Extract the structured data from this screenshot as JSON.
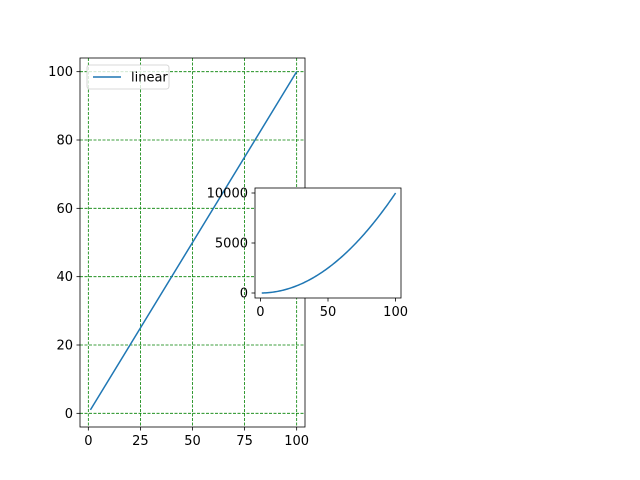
{
  "chart_data": [
    {
      "type": "line",
      "title": "",
      "xlabel": "",
      "ylabel": "",
      "xlim": [
        -4,
        104
      ],
      "ylim": [
        -4,
        104
      ],
      "xticks": [
        0,
        25,
        50,
        75,
        100
      ],
      "yticks": [
        0,
        20,
        40,
        60,
        80,
        100
      ],
      "grid": true,
      "grid_color": "#008000",
      "grid_style": "dashed",
      "legend": "upper-left",
      "series": [
        {
          "name": "linear",
          "color": "#1f77b4",
          "x": [
            1,
            100
          ],
          "y": [
            1,
            100
          ]
        }
      ]
    },
    {
      "type": "line",
      "title": "",
      "xlabel": "",
      "ylabel": "",
      "xlim": [
        -4,
        104
      ],
      "ylim": [
        -500,
        10500
      ],
      "xticks": [
        0,
        50,
        100
      ],
      "yticks": [
        0,
        5000,
        10000
      ],
      "grid": false,
      "series": [
        {
          "color": "#1f77b4",
          "function": "x^2",
          "x_range": [
            1,
            100
          ]
        }
      ]
    }
  ]
}
